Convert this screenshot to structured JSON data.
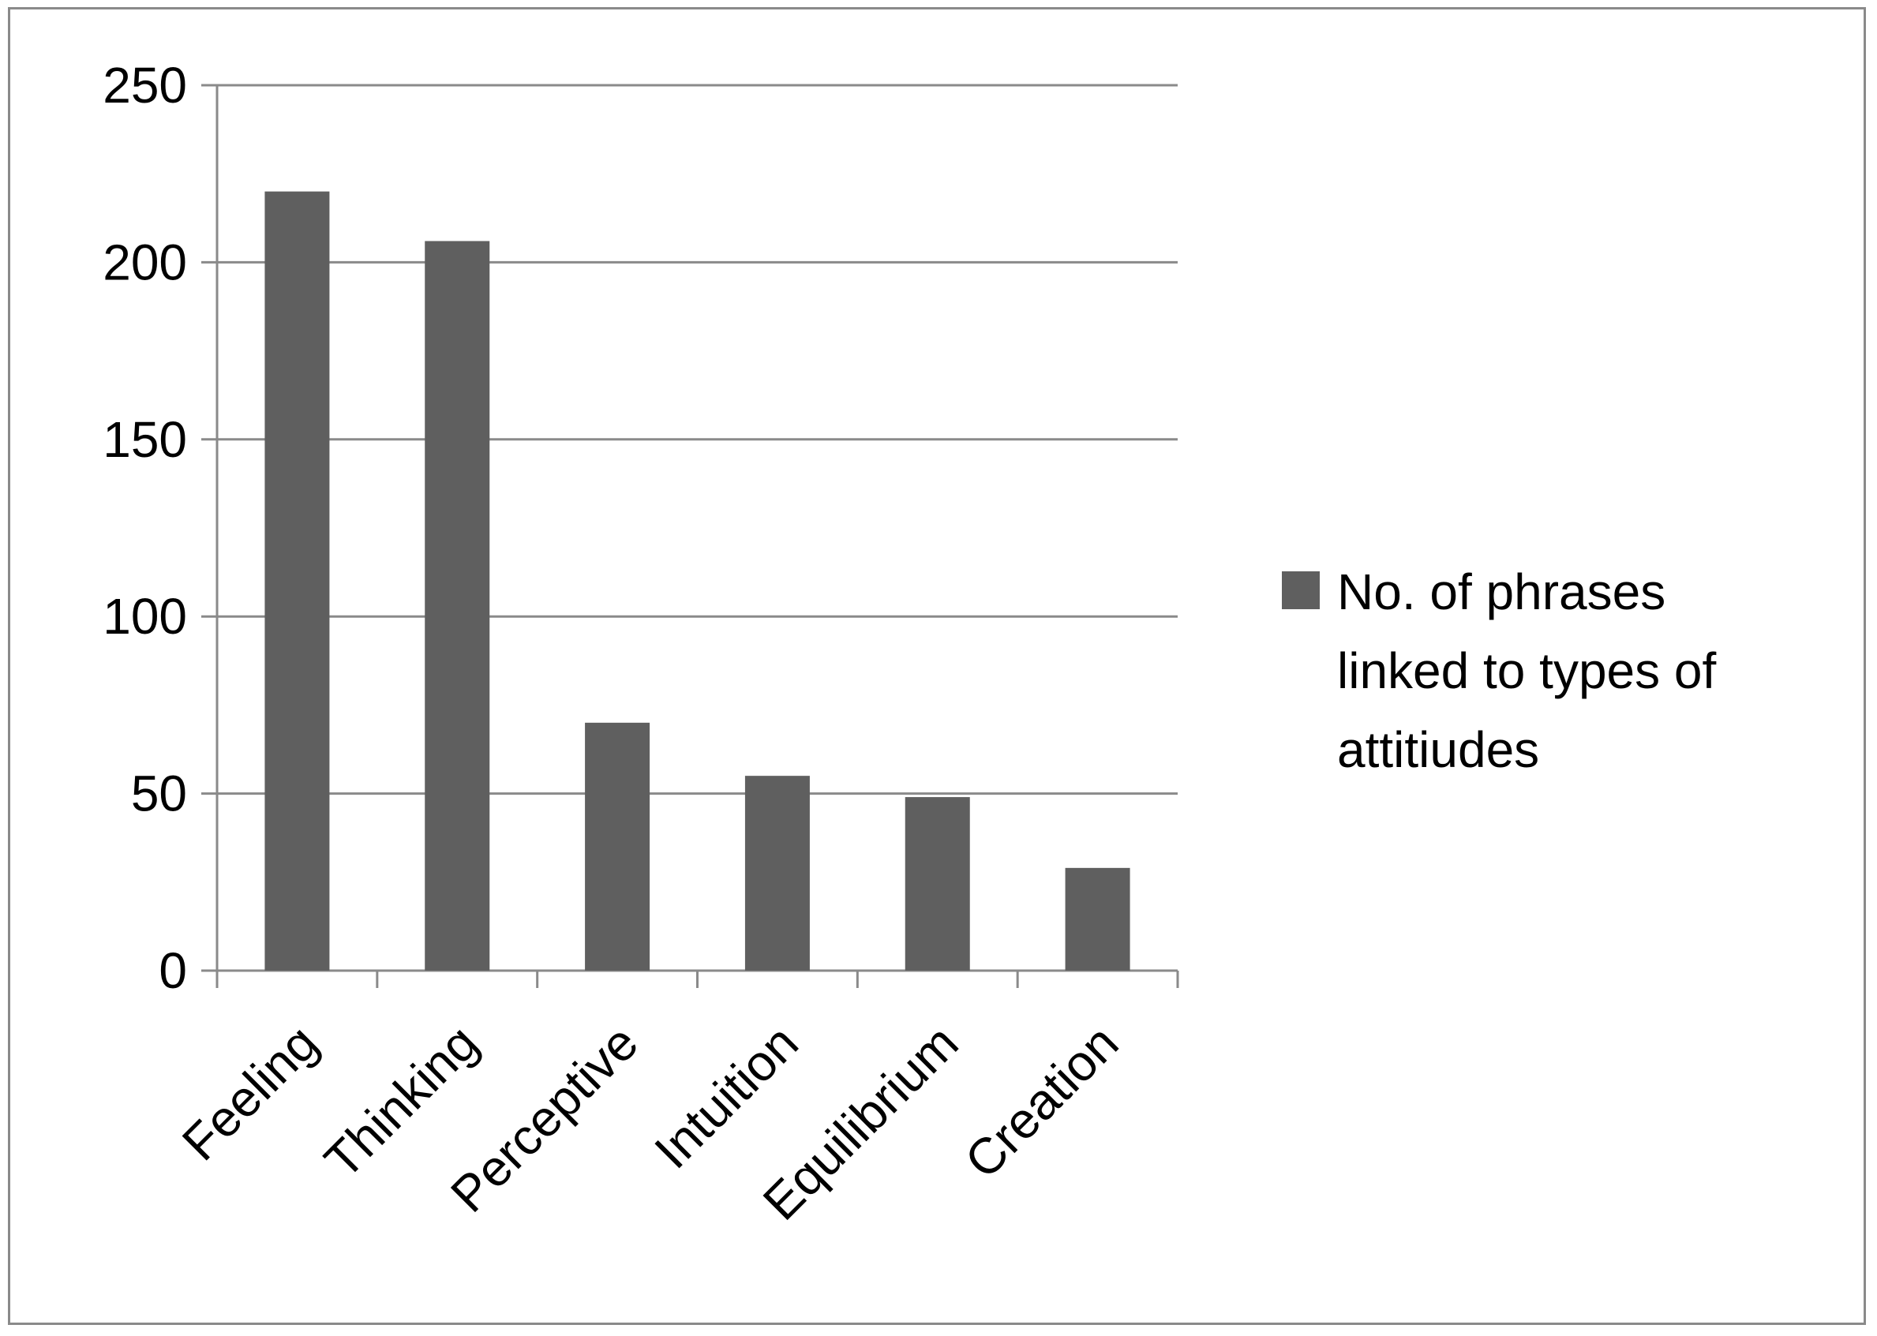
{
  "chart_data": {
    "type": "bar",
    "categories": [
      "Feeling",
      "Thinking",
      "Perceptive",
      "Intuition",
      "Equilibrium",
      "Creation"
    ],
    "series": [
      {
        "name": "No. of phrases linked to types of attitiudes",
        "values": [
          220,
          206,
          70,
          55,
          49,
          29
        ]
      }
    ],
    "yticks": [
      "0",
      "50",
      "100",
      "150",
      "200",
      "250"
    ],
    "ylim": [
      0,
      250
    ],
    "grid": true,
    "legend_position": "right",
    "legend_lines": [
      "No. of phrases",
      "linked to types of",
      "attitiudes"
    ],
    "bar_color": "#5f5f5f",
    "grid_color": "#8a8a8a"
  }
}
